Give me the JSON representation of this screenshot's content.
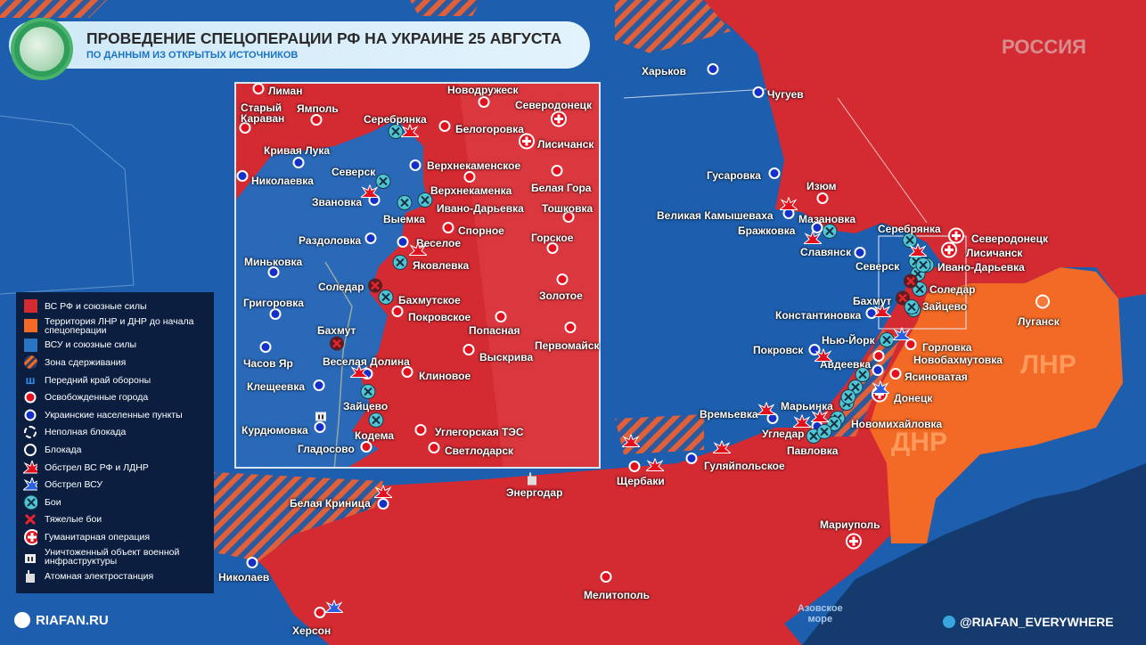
{
  "header": {
    "title": "ПРОВЕДЕНИЕ СПЕЦОПЕРАЦИИ РФ НА УКРАИНЕ 25 АВГУСТА",
    "subtitle": "ПО ДАННЫМ ИЗ ОТКРЫТЫХ ИСТОЧНИКОВ"
  },
  "region_labels": {
    "russia": "РОССИЯ",
    "lnr": "ЛНР",
    "dnr": "ДНР",
    "sea": "Азовское\nморе"
  },
  "colors": {
    "russian_forces": "#d42a32",
    "lnr_dnr_territory": "#f26a25",
    "ukrainian_forces": "#1d5fae",
    "legend_bg": "#0f1d38",
    "battle": "#4fc6d6"
  },
  "legend": [
    {
      "icon": "red-square",
      "label": "ВС РФ и союзные силы"
    },
    {
      "icon": "orange-square",
      "label": "Территория ЛНР и ДНР до начала спецоперации"
    },
    {
      "icon": "blue-square",
      "label": "ВСУ и союзные силы"
    },
    {
      "icon": "hatched-zone",
      "label": "Зона сдерживания"
    },
    {
      "icon": "defense-line",
      "label": "Передний край обороны"
    },
    {
      "icon": "red-dot",
      "label": "Освобожденные города"
    },
    {
      "icon": "blue-dot",
      "label": "Украинские населенные пункты"
    },
    {
      "icon": "dashed-ring",
      "label": "Неполная блокада"
    },
    {
      "icon": "ring",
      "label": "Блокада"
    },
    {
      "icon": "red-burst",
      "label": "Обстрел ВС РФ и ЛДНР"
    },
    {
      "icon": "blue-burst",
      "label": "Обстрел ВСУ"
    },
    {
      "icon": "battle-x",
      "label": "Бои"
    },
    {
      "icon": "heavy-x",
      "label": "Тяжелые бои"
    },
    {
      "icon": "red-cross",
      "label": "Гуманитарная операция"
    },
    {
      "icon": "destroyed-building",
      "label": "Уничтоженный объект военной инфраструктуры"
    },
    {
      "icon": "nuclear-plant",
      "label": "Атомная электростанция"
    }
  ],
  "main_map": {
    "cities": [
      {
        "name": "Харьков",
        "marker": "ua"
      },
      {
        "name": "Чугуев",
        "marker": "ua"
      },
      {
        "name": "Гусаровка",
        "marker": "ua"
      },
      {
        "name": "Изюм",
        "marker": "ru"
      },
      {
        "name": "Великая Камышеваха",
        "marker": "ua"
      },
      {
        "name": "Мазановка",
        "marker": "battle"
      },
      {
        "name": "Бражковка",
        "marker": "ua"
      },
      {
        "name": "Славянск",
        "marker": "ua"
      },
      {
        "name": "Серебрянка",
        "marker": "battle"
      },
      {
        "name": "Северодонецк",
        "marker": "hum"
      },
      {
        "name": "Лисичанск",
        "marker": "hum"
      },
      {
        "name": "Северск",
        "marker": "battle"
      },
      {
        "name": "Ивано-Дарьевка",
        "marker": "battle"
      },
      {
        "name": "Соледар",
        "marker": "battle"
      },
      {
        "name": "Бахмут",
        "marker": "heavy"
      },
      {
        "name": "Зайцево",
        "marker": "battle"
      },
      {
        "name": "Константиновка",
        "marker": "ua"
      },
      {
        "name": "Нью-Йорк",
        "marker": "battle"
      },
      {
        "name": "Горловка",
        "marker": "ru"
      },
      {
        "name": "Покровск",
        "marker": "ua"
      },
      {
        "name": "Новобахмутовка",
        "marker": "ru"
      },
      {
        "name": "Авдеевка",
        "marker": "ua"
      },
      {
        "name": "Ясиноватая",
        "marker": "ru"
      },
      {
        "name": "Донецк",
        "marker": "hum"
      },
      {
        "name": "Марьинка",
        "marker": "battle"
      },
      {
        "name": "Времьевка",
        "marker": "ua"
      },
      {
        "name": "Новомихайловка",
        "marker": "battle"
      },
      {
        "name": "Угледар",
        "marker": "ua"
      },
      {
        "name": "Павловка",
        "marker": "battle"
      },
      {
        "name": "Гуляйпольское",
        "marker": "ua"
      },
      {
        "name": "Щербаки",
        "marker": "ru"
      },
      {
        "name": "Энергодар",
        "marker": "aes"
      },
      {
        "name": "Белая Криница",
        "marker": "ua"
      },
      {
        "name": "Николаев",
        "marker": "ua"
      },
      {
        "name": "Херсон",
        "marker": "ru"
      },
      {
        "name": "Мелитополь",
        "marker": "ru"
      },
      {
        "name": "Мариуполь",
        "marker": "hum"
      },
      {
        "name": "Луганск",
        "marker": "lnr"
      }
    ]
  },
  "inset_map": {
    "cities": [
      {
        "name": "Лиман",
        "marker": "ru"
      },
      {
        "name": "Старый\nКараван",
        "marker": "ru"
      },
      {
        "name": "Ямполь",
        "marker": "ru"
      },
      {
        "name": "Серебрянка",
        "marker": "battle"
      },
      {
        "name": "Новодружеск",
        "marker": "ru"
      },
      {
        "name": "Северодонецк",
        "marker": "hum"
      },
      {
        "name": "Белогоровка",
        "marker": "ru"
      },
      {
        "name": "Лисичанск",
        "marker": "hum"
      },
      {
        "name": "Кривая Лука",
        "marker": "ua"
      },
      {
        "name": "Николаевка",
        "marker": "ua"
      },
      {
        "name": "Северск",
        "marker": "battle"
      },
      {
        "name": "Верхнекаменское",
        "marker": "ua"
      },
      {
        "name": "Верхнекаменка",
        "marker": "ru"
      },
      {
        "name": "Белая Гора",
        "marker": "ru"
      },
      {
        "name": "Звановка",
        "marker": "ua"
      },
      {
        "name": "Выемка",
        "marker": "battle"
      },
      {
        "name": "Ивано-Дарьевка",
        "marker": "battle"
      },
      {
        "name": "Тошковка",
        "marker": "ru"
      },
      {
        "name": "Спорное",
        "marker": "ru"
      },
      {
        "name": "Раздоловка",
        "marker": "ua"
      },
      {
        "name": "Веселое",
        "marker": "ua"
      },
      {
        "name": "Горское",
        "marker": "ru"
      },
      {
        "name": "Миньковка",
        "marker": "ua"
      },
      {
        "name": "Яковлевка",
        "marker": "battle"
      },
      {
        "name": "Золотое",
        "marker": "ru"
      },
      {
        "name": "Соледар",
        "marker": "heavy"
      },
      {
        "name": "Бахмутское",
        "marker": "battle"
      },
      {
        "name": "Григоровка",
        "marker": "ua"
      },
      {
        "name": "Покровское",
        "marker": "ru"
      },
      {
        "name": "Попасная",
        "marker": "ru"
      },
      {
        "name": "Первомайск",
        "marker": "ru"
      },
      {
        "name": "Бахмут",
        "marker": "heavy"
      },
      {
        "name": "Часов Яр",
        "marker": "ua"
      },
      {
        "name": "Веселая Долина",
        "marker": "ua"
      },
      {
        "name": "Выскрива",
        "marker": "ru"
      },
      {
        "name": "Клиновое",
        "marker": "ru"
      },
      {
        "name": "Клещеевка",
        "marker": "ua"
      },
      {
        "name": "Зайцево",
        "marker": "battle"
      },
      {
        "name": "Курдюмовка",
        "marker": "ua"
      },
      {
        "name": "Кодема",
        "marker": "battle"
      },
      {
        "name": "Углегорская ТЭС",
        "marker": "ru"
      },
      {
        "name": "Гладосово",
        "marker": "ru"
      },
      {
        "name": "Светлодарск",
        "marker": "ru"
      }
    ]
  },
  "footer": {
    "site": "RIAFAN.RU",
    "telegram": "@RIAFAN_EVERYWHERE"
  }
}
